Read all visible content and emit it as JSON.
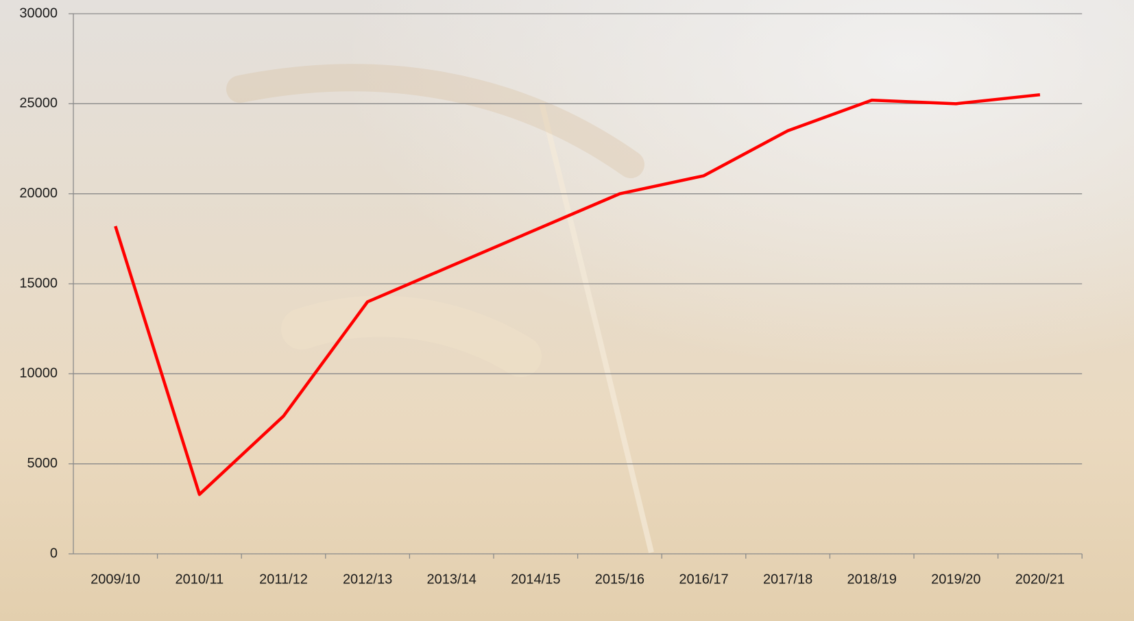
{
  "chart_data": {
    "type": "line",
    "categories": [
      "2009/10",
      "2010/11",
      "2011/12",
      "2012/13",
      "2013/14",
      "2014/15",
      "2015/16",
      "2016/17",
      "2017/18",
      "2018/19",
      "2019/20",
      "2020/21"
    ],
    "series": [
      {
        "color": "#ff0000",
        "values": [
          18200,
          3300,
          7650,
          14000,
          16000,
          18000,
          20000,
          21000,
          23500,
          25200,
          25000,
          25500
        ]
      }
    ],
    "ylim": [
      0,
      30000
    ],
    "yticks": [
      0,
      5000,
      10000,
      15000,
      20000,
      25000,
      30000
    ],
    "grid": true
  }
}
